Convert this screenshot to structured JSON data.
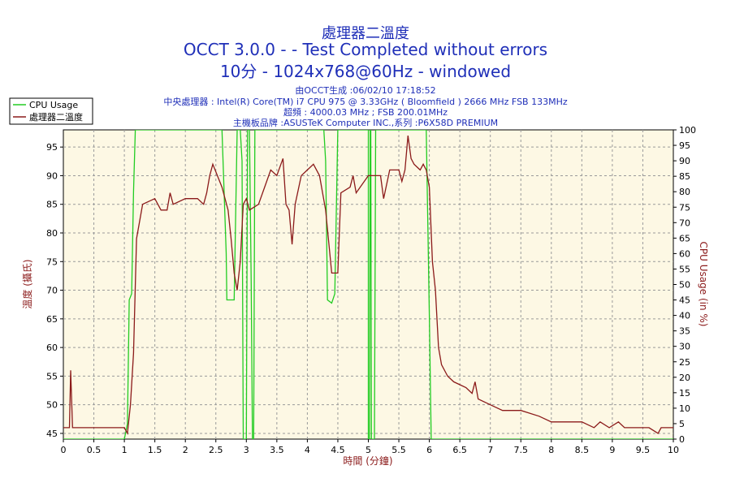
{
  "chart_data": {
    "type": "line",
    "title_lines": [
      "處理器二溫度",
      "OCCT 3.0.0 -  - Test Completed without errors",
      "10分 - 1024x768@60Hz - windowed"
    ],
    "info_lines": [
      "由OCCT生成 :06/02/10 17:18:52",
      "中央處理器 : Intel(R) Core(TM) i7 CPU 975 @ 3.33GHz ( Bloomfield ) 2666 MHz FSB 133MHz",
      "超頻 : 4000.03 MHz ; FSB 200.01MHz",
      "主機板品牌 :ASUSTeK Computer INC.,系列 :P6X58D PREMIUM"
    ],
    "xlabel": "時間 (分鐘)",
    "ylabel_left": "溫度 (攝氏)",
    "ylabel_right": "CPU Usage (in %)",
    "xlim": [
      0,
      10
    ],
    "ylim_left": [
      44,
      98
    ],
    "ylim_right": [
      0,
      100
    ],
    "x_ticks": [
      "0",
      "0.5",
      "1",
      "1.5",
      "2",
      "2.5",
      "3",
      "3.5",
      "4",
      "4.5",
      "5",
      "5.5",
      "6",
      "6.5",
      "7",
      "7.5",
      "8",
      "8.5",
      "9",
      "9.5",
      "10"
    ],
    "y_left_ticks": [
      "45",
      "50",
      "55",
      "60",
      "65",
      "70",
      "75",
      "80",
      "85",
      "90",
      "95"
    ],
    "y_right_ticks": [
      "0",
      "5",
      "10",
      "15",
      "20",
      "25",
      "30",
      "35",
      "40",
      "45",
      "50",
      "55",
      "60",
      "65",
      "70",
      "75",
      "80",
      "85",
      "90",
      "95",
      "100"
    ],
    "grid": true,
    "legend_position": "top-left",
    "series": [
      {
        "name": "CPU Usage",
        "color": "#22cc22",
        "axis": "right",
        "points": [
          [
            0,
            0
          ],
          [
            1.0,
            0
          ],
          [
            1.05,
            5
          ],
          [
            1.08,
            45
          ],
          [
            1.12,
            47
          ],
          [
            1.15,
            80
          ],
          [
            1.18,
            100
          ],
          [
            2.6,
            100
          ],
          [
            2.67,
            60
          ],
          [
            2.68,
            45
          ],
          [
            2.8,
            45
          ],
          [
            2.85,
            100
          ],
          [
            2.9,
            100
          ],
          [
            2.93,
            90
          ],
          [
            2.95,
            0
          ],
          [
            3.0,
            0
          ],
          [
            3.02,
            100
          ],
          [
            3.05,
            100
          ],
          [
            3.08,
            50
          ],
          [
            3.1,
            0
          ],
          [
            3.12,
            0
          ],
          [
            3.14,
            100
          ],
          [
            4.27,
            100
          ],
          [
            4.3,
            90
          ],
          [
            4.33,
            45
          ],
          [
            4.4,
            44
          ],
          [
            4.45,
            47
          ],
          [
            4.5,
            100
          ],
          [
            5.0,
            100
          ],
          [
            5.0,
            0
          ],
          [
            5.02,
            0
          ],
          [
            5.03,
            100
          ],
          [
            5.04,
            100
          ],
          [
            5.05,
            0
          ],
          [
            5.1,
            0
          ],
          [
            5.12,
            100
          ],
          [
            5.95,
            100
          ],
          [
            6.0,
            40
          ],
          [
            6.03,
            0
          ],
          [
            10,
            0
          ]
        ]
      },
      {
        "name": "處理器二溫度",
        "color": "#8b1a1a",
        "axis": "left",
        "points": [
          [
            0,
            46
          ],
          [
            0.1,
            46
          ],
          [
            0.12,
            56
          ],
          [
            0.15,
            46
          ],
          [
            1.0,
            46
          ],
          [
            1.05,
            45
          ],
          [
            1.1,
            50
          ],
          [
            1.15,
            59
          ],
          [
            1.2,
            79
          ],
          [
            1.3,
            85
          ],
          [
            1.5,
            86
          ],
          [
            1.6,
            84
          ],
          [
            1.7,
            84
          ],
          [
            1.75,
            87
          ],
          [
            1.8,
            85
          ],
          [
            2.0,
            86
          ],
          [
            2.2,
            86
          ],
          [
            2.3,
            85
          ],
          [
            2.35,
            87
          ],
          [
            2.4,
            90
          ],
          [
            2.45,
            92
          ],
          [
            2.6,
            88
          ],
          [
            2.7,
            84
          ],
          [
            2.75,
            79
          ],
          [
            2.8,
            73
          ],
          [
            2.85,
            70
          ],
          [
            2.9,
            75
          ],
          [
            2.95,
            85
          ],
          [
            3.0,
            86
          ],
          [
            3.05,
            84
          ],
          [
            3.2,
            85
          ],
          [
            3.3,
            88
          ],
          [
            3.4,
            91
          ],
          [
            3.5,
            90
          ],
          [
            3.6,
            93
          ],
          [
            3.65,
            85
          ],
          [
            3.7,
            84
          ],
          [
            3.75,
            78
          ],
          [
            3.8,
            85
          ],
          [
            3.9,
            90
          ],
          [
            4.0,
            91
          ],
          [
            4.1,
            92
          ],
          [
            4.2,
            90
          ],
          [
            4.3,
            84
          ],
          [
            4.4,
            73
          ],
          [
            4.5,
            73
          ],
          [
            4.55,
            87
          ],
          [
            4.7,
            88
          ],
          [
            4.75,
            90
          ],
          [
            4.8,
            87
          ],
          [
            5.0,
            90
          ],
          [
            5.2,
            90
          ],
          [
            5.25,
            86
          ],
          [
            5.35,
            91
          ],
          [
            5.5,
            91
          ],
          [
            5.55,
            89
          ],
          [
            5.6,
            91
          ],
          [
            5.65,
            97
          ],
          [
            5.7,
            93
          ],
          [
            5.75,
            92
          ],
          [
            5.85,
            91
          ],
          [
            5.9,
            92
          ],
          [
            5.95,
            91
          ],
          [
            6.0,
            88
          ],
          [
            6.05,
            75
          ],
          [
            6.1,
            70
          ],
          [
            6.15,
            60
          ],
          [
            6.2,
            57
          ],
          [
            6.3,
            55
          ],
          [
            6.4,
            54
          ],
          [
            6.6,
            53
          ],
          [
            6.7,
            52
          ],
          [
            6.75,
            54
          ],
          [
            6.8,
            51
          ],
          [
            7.0,
            50
          ],
          [
            7.2,
            49
          ],
          [
            7.5,
            49
          ],
          [
            7.8,
            48
          ],
          [
            8.0,
            47
          ],
          [
            8.5,
            47
          ],
          [
            8.7,
            46
          ],
          [
            8.8,
            47
          ],
          [
            8.95,
            46
          ],
          [
            9.1,
            47
          ],
          [
            9.2,
            46
          ],
          [
            9.6,
            46
          ],
          [
            9.75,
            45
          ],
          [
            9.8,
            46
          ],
          [
            10,
            46
          ]
        ]
      }
    ]
  }
}
